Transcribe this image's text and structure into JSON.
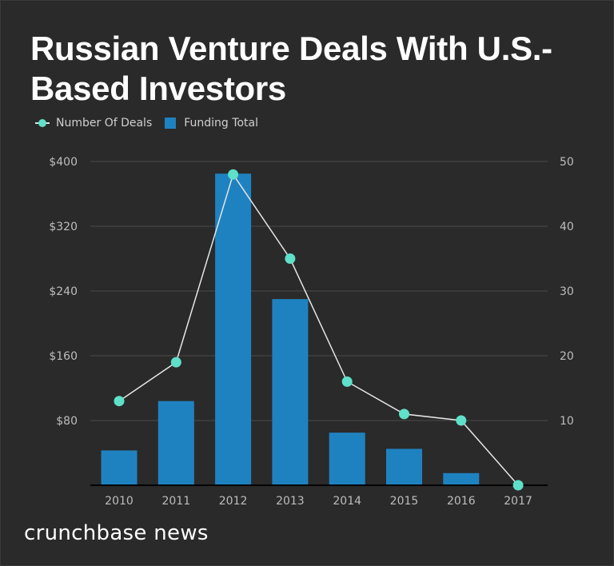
{
  "chart_data": {
    "type": "bar",
    "title": "Russian Venture Deals With U.S.-Based Investors",
    "categories": [
      "2010",
      "2011",
      "2012",
      "2013",
      "2014",
      "2015",
      "2016",
      "2017"
    ],
    "series": [
      {
        "name": "Funding Total",
        "type": "bar",
        "axis": "left",
        "color": "#1f82c0",
        "values": [
          43,
          104,
          385,
          230,
          65,
          45,
          15,
          0
        ]
      },
      {
        "name": "Number Of Deals",
        "type": "line",
        "axis": "right",
        "color": "#5fe0c8",
        "values": [
          13,
          19,
          48,
          35,
          16,
          11,
          10,
          0
        ]
      }
    ],
    "left_axis": {
      "ylim": [
        0,
        400
      ],
      "ticks": [
        80,
        160,
        240,
        320,
        400
      ],
      "tick_labels": [
        "$80",
        "$160",
        "$240",
        "$320",
        "$400"
      ]
    },
    "right_axis": {
      "ylim": [
        0,
        50
      ],
      "ticks": [
        10,
        20,
        30,
        40,
        50
      ],
      "tick_labels": [
        "10",
        "20",
        "30",
        "40",
        "50"
      ]
    },
    "legend": [
      "Number Of Deals",
      "Funding Total"
    ],
    "legend_placement": "top-left",
    "grid": true
  },
  "branding": "crunchbase news"
}
